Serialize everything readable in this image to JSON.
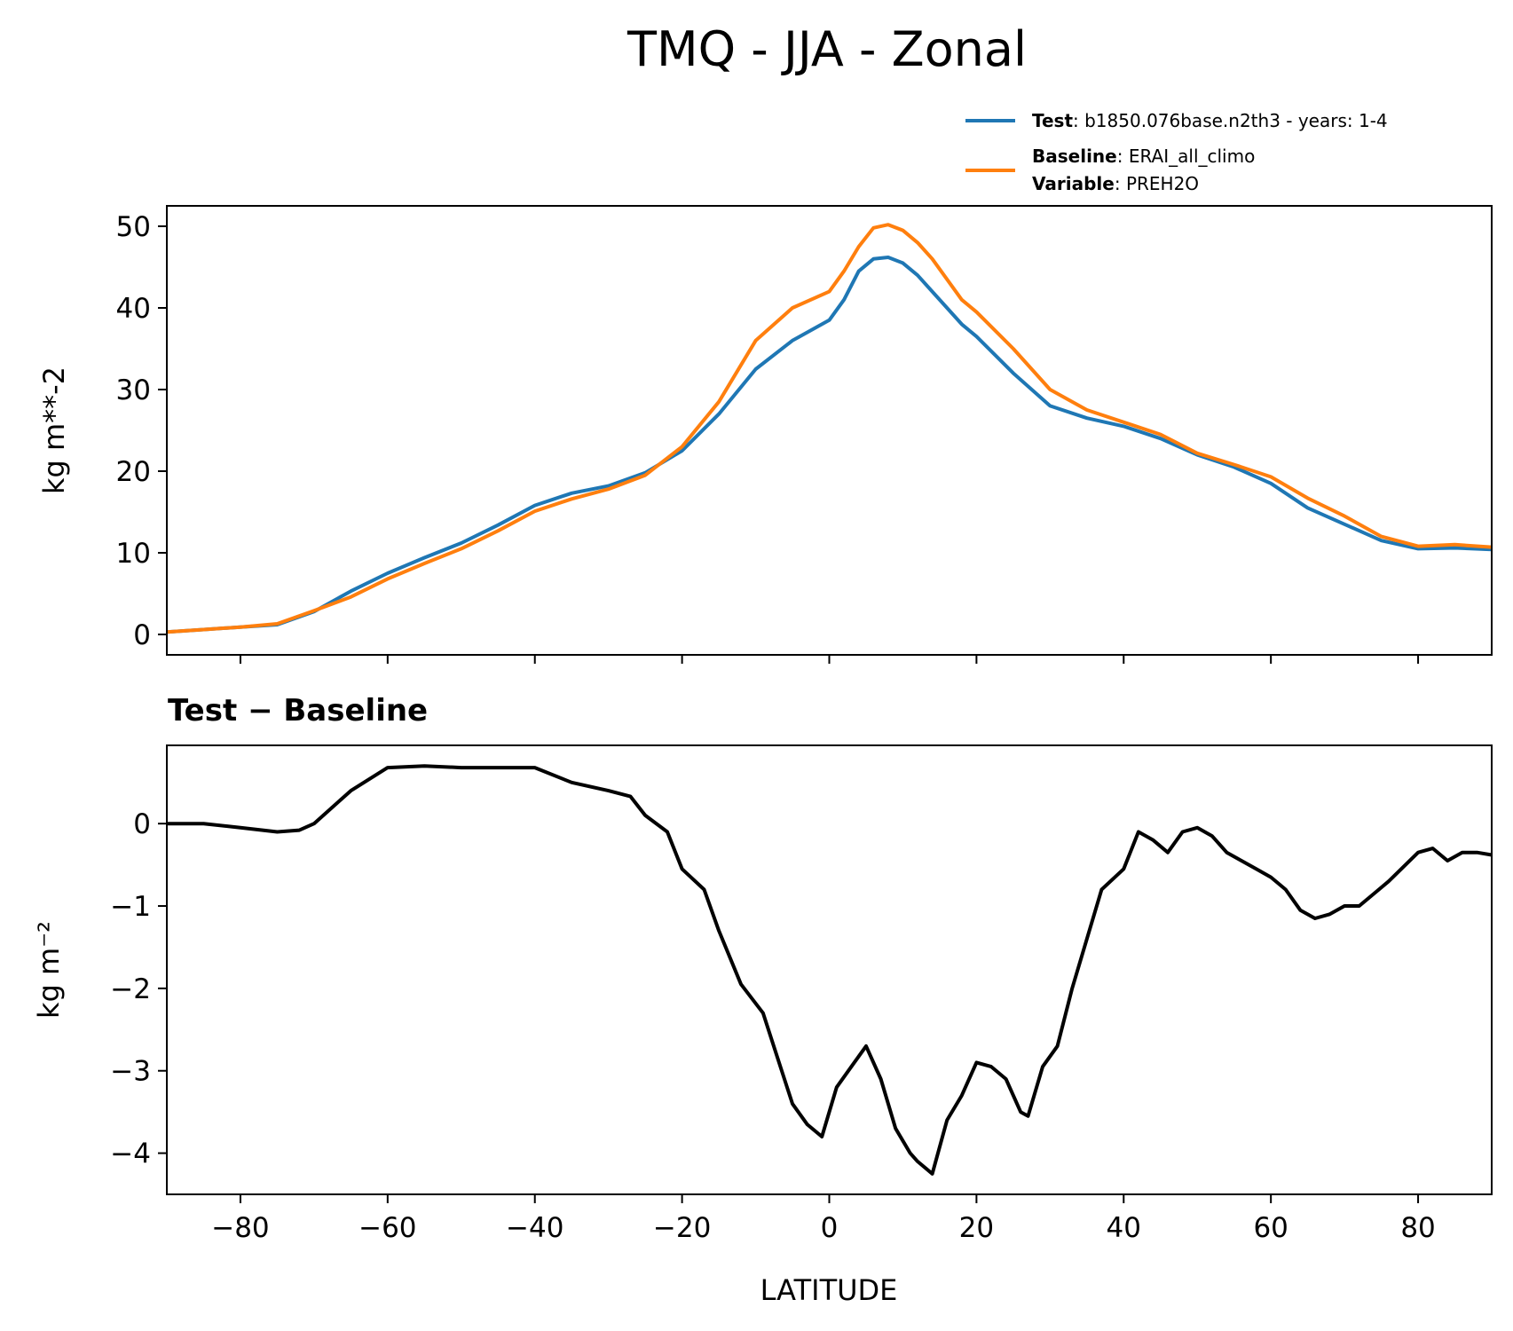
{
  "figure": {
    "title": "TMQ - JJA - Zonal"
  },
  "legend": {
    "test_label": "Test",
    "test_text": ": b1850.076base.n2th3 - years: 1-4",
    "baseline_label": "Baseline",
    "baseline_text": ": ERAI_all_climo",
    "variable_label": "Variable",
    "variable_text": ": PREH2O"
  },
  "colors": {
    "test": "#1f77b4",
    "baseline": "#ff7f0e",
    "difference": "#000000"
  },
  "chart_data": [
    {
      "type": "line",
      "title": "",
      "xlabel": "",
      "ylabel": "kg m**-2",
      "xlim": [
        -90,
        90
      ],
      "ylim": [
        -2.5,
        52.5
      ],
      "xticks": [
        -80,
        -60,
        -40,
        -20,
        0,
        20,
        40,
        60,
        80
      ],
      "yticks": [
        0,
        10,
        20,
        30,
        40,
        50
      ],
      "ytick_labels": [
        "0",
        "10",
        "20",
        "30",
        "40",
        "50"
      ],
      "legend_position": "top-right, above axes",
      "x": [
        -90,
        -85,
        -80,
        -75,
        -70,
        -65,
        -60,
        -55,
        -50,
        -45,
        -40,
        -35,
        -30,
        -25,
        -20,
        -15,
        -10,
        -5,
        0,
        2,
        4,
        6,
        8,
        10,
        12,
        14,
        16,
        18,
        20,
        25,
        30,
        35,
        40,
        45,
        50,
        55,
        60,
        65,
        70,
        75,
        80,
        85,
        90
      ],
      "series": [
        {
          "name": "Test",
          "color": "#1f77b4",
          "values": [
            0.3,
            0.6,
            0.9,
            1.2,
            2.8,
            5.3,
            7.5,
            9.4,
            11.2,
            13.4,
            15.8,
            17.3,
            18.2,
            19.8,
            22.5,
            27.0,
            32.5,
            36.0,
            38.5,
            41.0,
            44.5,
            46.0,
            46.2,
            45.5,
            44.0,
            42.0,
            40.0,
            38.0,
            36.5,
            32.0,
            28.0,
            26.5,
            25.5,
            24.0,
            22.0,
            20.5,
            18.5,
            15.5,
            13.5,
            11.5,
            10.5,
            10.6,
            10.4
          ]
        },
        {
          "name": "Baseline",
          "color": "#ff7f0e",
          "values": [
            0.3,
            0.6,
            0.9,
            1.3,
            2.9,
            4.6,
            6.8,
            8.7,
            10.5,
            12.7,
            15.1,
            16.6,
            17.8,
            19.5,
            23.0,
            28.5,
            36.0,
            40.0,
            42.0,
            44.5,
            47.5,
            49.8,
            50.2,
            49.5,
            48.0,
            46.0,
            43.5,
            41.0,
            39.5,
            35.0,
            30.0,
            27.5,
            26.0,
            24.5,
            22.2,
            20.8,
            19.3,
            16.7,
            14.5,
            12.0,
            10.8,
            11.0,
            10.7
          ]
        }
      ]
    },
    {
      "type": "line",
      "title": "Test − Baseline",
      "xlabel": "LATITUDE",
      "ylabel": "kg m⁻²",
      "xlim": [
        -90,
        90
      ],
      "ylim": [
        -4.5,
        0.95
      ],
      "xticks": [
        -80,
        -60,
        -40,
        -20,
        0,
        20,
        40,
        60,
        80
      ],
      "xtick_labels": [
        "−80",
        "−60",
        "−40",
        "−20",
        "0",
        "20",
        "40",
        "60",
        "80"
      ],
      "yticks": [
        0,
        -1,
        -2,
        -3,
        -4
      ],
      "ytick_labels": [
        "0",
        "−1",
        "−2",
        "−3",
        "−4"
      ],
      "x": [
        -90,
        -85,
        -80,
        -75,
        -72,
        -70,
        -65,
        -60,
        -55,
        -50,
        -45,
        -40,
        -35,
        -30,
        -27,
        -25,
        -22,
        -20,
        -17,
        -15,
        -12,
        -9,
        -7,
        -5,
        -3,
        -1,
        1,
        3,
        5,
        7,
        9,
        11,
        12,
        14,
        16,
        18,
        20,
        22,
        24,
        26,
        27,
        29,
        31,
        33,
        35,
        37,
        40,
        42,
        44,
        46,
        48,
        50,
        52,
        54,
        56,
        58,
        60,
        62,
        64,
        66,
        68,
        70,
        72,
        74,
        76,
        80,
        82,
        84,
        86,
        88,
        90
      ],
      "series": [
        {
          "name": "Test − Baseline",
          "color": "#000000",
          "values": [
            0.0,
            0.0,
            -0.05,
            -0.1,
            -0.08,
            0.0,
            0.4,
            0.68,
            0.7,
            0.68,
            0.68,
            0.68,
            0.5,
            0.4,
            0.33,
            0.1,
            -0.1,
            -0.55,
            -0.8,
            -1.3,
            -1.95,
            -2.3,
            -2.85,
            -3.4,
            -3.65,
            -3.8,
            -3.2,
            -2.95,
            -2.7,
            -3.1,
            -3.7,
            -4.0,
            -4.1,
            -4.25,
            -3.6,
            -3.3,
            -2.9,
            -2.95,
            -3.1,
            -3.5,
            -3.55,
            -2.95,
            -2.7,
            -2.0,
            -1.4,
            -0.8,
            -0.55,
            -0.1,
            -0.2,
            -0.35,
            -0.1,
            -0.05,
            -0.15,
            -0.35,
            -0.45,
            -0.55,
            -0.65,
            -0.8,
            -1.05,
            -1.15,
            -1.1,
            -1.0,
            -1.0,
            -0.85,
            -0.7,
            -0.35,
            -0.3,
            -0.45,
            -0.35,
            -0.35,
            -0.38
          ]
        }
      ]
    }
  ]
}
